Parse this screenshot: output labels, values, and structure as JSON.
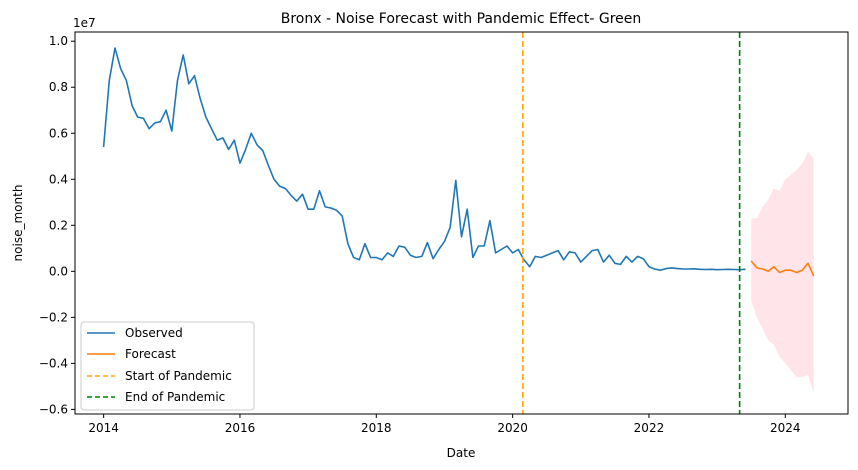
{
  "chart_data": {
    "type": "line",
    "title": "Bronx - Noise Forecast with Pandemic Effect- Green",
    "xlabel": "Date",
    "ylabel": "noise_month",
    "y_scale_label": "1e7",
    "xlim": [
      2013.58,
      2024.92
    ],
    "ylim": [
      -6200000,
      10400000
    ],
    "x_ticks": [
      2014,
      2016,
      2018,
      2020,
      2022,
      2024
    ],
    "x_tick_labels": [
      "2014",
      "2016",
      "2018",
      "2020",
      "2022",
      "2024"
    ],
    "y_ticks": [
      -6000000,
      -4000000,
      -2000000,
      0,
      2000000,
      4000000,
      6000000,
      8000000,
      10000000
    ],
    "y_tick_labels": [
      "−0.6",
      "−0.4",
      "−0.2",
      "0.0",
      "0.2",
      "0.4",
      "0.6",
      "0.8",
      "1.0"
    ],
    "grid": false,
    "legend_position": "bottom-left",
    "colors": {
      "observed": "#1f77b4",
      "forecast": "#ff7f0e",
      "pandemic_start": "#ffa500",
      "pandemic_end": "#008000",
      "interval": "#ffe4ea"
    },
    "series": [
      {
        "name": "Observed",
        "x": [
          2014.0,
          2014.083,
          2014.167,
          2014.25,
          2014.333,
          2014.417,
          2014.5,
          2014.583,
          2014.667,
          2014.75,
          2014.833,
          2014.917,
          2015.0,
          2015.083,
          2015.167,
          2015.25,
          2015.333,
          2015.417,
          2015.5,
          2015.583,
          2015.667,
          2015.75,
          2015.833,
          2015.917,
          2016.0,
          2016.083,
          2016.167,
          2016.25,
          2016.333,
          2016.417,
          2016.5,
          2016.583,
          2016.667,
          2016.75,
          2016.833,
          2016.917,
          2017.0,
          2017.083,
          2017.167,
          2017.25,
          2017.333,
          2017.417,
          2017.5,
          2017.583,
          2017.667,
          2017.75,
          2017.833,
          2017.917,
          2018.0,
          2018.083,
          2018.167,
          2018.25,
          2018.333,
          2018.417,
          2018.5,
          2018.583,
          2018.667,
          2018.75,
          2018.833,
          2018.917,
          2019.0,
          2019.083,
          2019.167,
          2019.25,
          2019.333,
          2019.417,
          2019.5,
          2019.583,
          2019.667,
          2019.75,
          2019.833,
          2019.917,
          2020.0,
          2020.083,
          2020.167,
          2020.25,
          2020.333,
          2020.417,
          2020.5,
          2020.583,
          2020.667,
          2020.75,
          2020.833,
          2020.917,
          2021.0,
          2021.083,
          2021.167,
          2021.25,
          2021.333,
          2021.417,
          2021.5,
          2021.583,
          2021.667,
          2021.75,
          2021.833,
          2021.917,
          2022.0,
          2022.083,
          2022.167,
          2022.25,
          2022.333,
          2022.417,
          2022.5,
          2022.583,
          2022.667,
          2022.75,
          2022.833,
          2022.917,
          2023.0,
          2023.083,
          2023.167,
          2023.25,
          2023.333,
          2023.417
        ],
        "values": [
          5400000,
          8300000,
          9700000,
          8800000,
          8300000,
          7200000,
          6700000,
          6650000,
          6200000,
          6450000,
          6500000,
          7000000,
          6100000,
          8300000,
          9400000,
          8150000,
          8500000,
          7500000,
          6700000,
          6200000,
          5700000,
          5800000,
          5300000,
          5700000,
          4700000,
          5300000,
          6000000,
          5500000,
          5250000,
          4600000,
          4000000,
          3700000,
          3600000,
          3300000,
          3050000,
          3350000,
          2700000,
          2700000,
          3500000,
          2800000,
          2750000,
          2650000,
          2400000,
          1200000,
          600000,
          500000,
          1200000,
          600000,
          600000,
          500000,
          800000,
          650000,
          1100000,
          1050000,
          700000,
          600000,
          650000,
          1250000,
          550000,
          950000,
          1300000,
          1900000,
          3950000,
          1500000,
          2700000,
          600000,
          1100000,
          1100000,
          2200000,
          800000,
          950000,
          1100000,
          800000,
          950000,
          500000,
          200000,
          650000,
          600000,
          700000,
          800000,
          900000,
          500000,
          850000,
          800000,
          400000,
          650000,
          900000,
          950000,
          400000,
          700000,
          350000,
          300000,
          650000,
          400000,
          650000,
          550000,
          200000,
          100000,
          50000,
          120000,
          150000,
          120000,
          100000,
          100000,
          110000,
          90000,
          80000,
          90000,
          70000,
          80000,
          90000,
          80000,
          70000,
          90000
        ]
      },
      {
        "name": "Forecast",
        "x": [
          2023.5,
          2023.583,
          2023.667,
          2023.75,
          2023.833,
          2023.917,
          2024.0,
          2024.083,
          2024.167,
          2024.25,
          2024.333,
          2024.417
        ],
        "values": [
          450000,
          150000,
          100000,
          0,
          200000,
          -50000,
          50000,
          50000,
          -50000,
          50000,
          350000,
          -200000
        ],
        "lower": [
          -1300000,
          -2000000,
          -2500000,
          -3000000,
          -3200000,
          -3700000,
          -4000000,
          -4300000,
          -4600000,
          -4600000,
          -4500000,
          -5300000
        ],
        "upper": [
          2300000,
          2300000,
          2800000,
          3100000,
          3600000,
          3500000,
          4000000,
          4200000,
          4400000,
          4700000,
          5200000,
          4900000
        ]
      }
    ],
    "vlines": [
      {
        "name": "Start of Pandemic",
        "x": 2020.15,
        "style": "dashed"
      },
      {
        "name": "End of Pandemic",
        "x": 2023.33,
        "style": "dashed"
      }
    ]
  }
}
